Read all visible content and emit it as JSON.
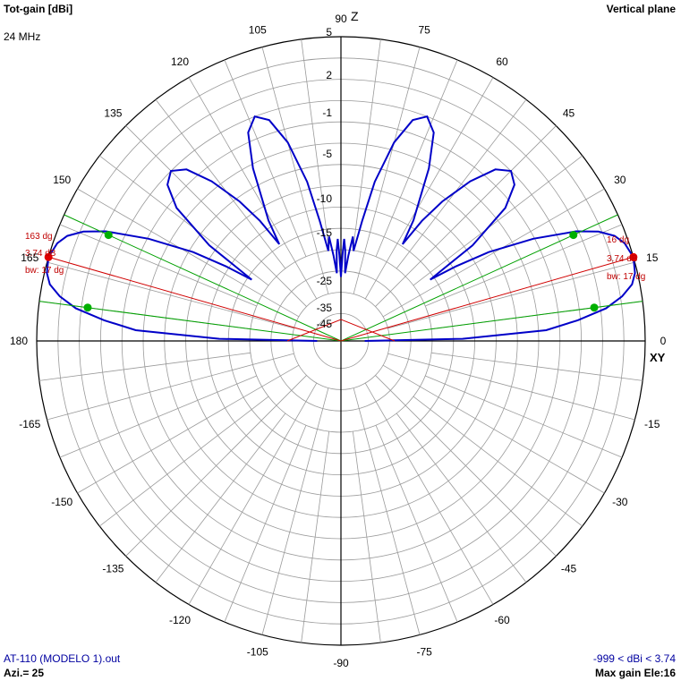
{
  "header": {
    "title": "Tot-gain [dBi]",
    "plane": "Vertical plane",
    "frequency": "24 MHz"
  },
  "footer": {
    "filename": "AT-110 (MODELO 1).out",
    "azimuth": "Azi.= 25",
    "gain_range": "-999 < dBi < 3.74",
    "max_gain": "Max gain Ele:16"
  },
  "axes": {
    "z_label": "Z",
    "xy_label": "XY"
  },
  "chart_data": {
    "type": "polar",
    "title": "Tot-gain [dBi]",
    "angular_unit": "degrees (elevation)",
    "angle_ticks": [
      0,
      15,
      30,
      45,
      60,
      75,
      90,
      105,
      120,
      135,
      150,
      165,
      180,
      -165,
      -150,
      -135,
      -120,
      -105,
      -90,
      -75,
      -60,
      -45,
      -30,
      -15
    ],
    "radial_ticks": [
      5,
      2,
      -1,
      -5,
      -10,
      -15,
      -25,
      -35,
      -45
    ],
    "series": [
      {
        "color": "#0000c8",
        "points": [
          [
            0,
            -40
          ],
          [
            1,
            -12
          ],
          [
            3,
            -3
          ],
          [
            5,
            -0.5
          ],
          [
            7,
            1.5
          ],
          [
            9,
            2.6
          ],
          [
            11,
            3.3
          ],
          [
            13,
            3.6
          ],
          [
            16,
            3.74
          ],
          [
            19,
            3.5
          ],
          [
            21,
            3.1
          ],
          [
            23,
            2.3
          ],
          [
            25,
            1.0
          ],
          [
            28,
            -2
          ],
          [
            31,
            -6
          ],
          [
            33,
            -10
          ],
          [
            34.5,
            -14
          ],
          [
            36,
            -7
          ],
          [
            39,
            -2.5
          ],
          [
            42,
            -0.8
          ],
          [
            45,
            -0.3
          ],
          [
            48,
            -1
          ],
          [
            51,
            -3
          ],
          [
            54,
            -6
          ],
          [
            56,
            -9
          ],
          [
            57.5,
            -13
          ],
          [
            59,
            -9.5
          ],
          [
            63,
            -4
          ],
          [
            66,
            -1.2
          ],
          [
            69,
            -0.3
          ],
          [
            72,
            -0.9
          ],
          [
            75,
            -3
          ],
          [
            78,
            -7
          ],
          [
            80,
            -12
          ],
          [
            82,
            -17
          ],
          [
            83.5,
            -14.5
          ],
          [
            85,
            -18
          ],
          [
            86.5,
            -22
          ],
          [
            87.3,
            -17
          ],
          [
            88.2,
            -15
          ],
          [
            89,
            -18
          ],
          [
            90,
            -23
          ]
        ],
        "symmetric": true
      }
    ],
    "annotations": [
      {
        "side": "right",
        "angle_label": "16 dg",
        "gain_label": "3.74 dB",
        "bw_label": "bw: 17 dg"
      },
      {
        "side": "left",
        "angle_label": "163 dg",
        "gain_label": "3.74 dB",
        "bw_label": "bw: 17 dg"
      }
    ],
    "rlim_dbi": [
      -50,
      5
    ],
    "grid": true
  }
}
